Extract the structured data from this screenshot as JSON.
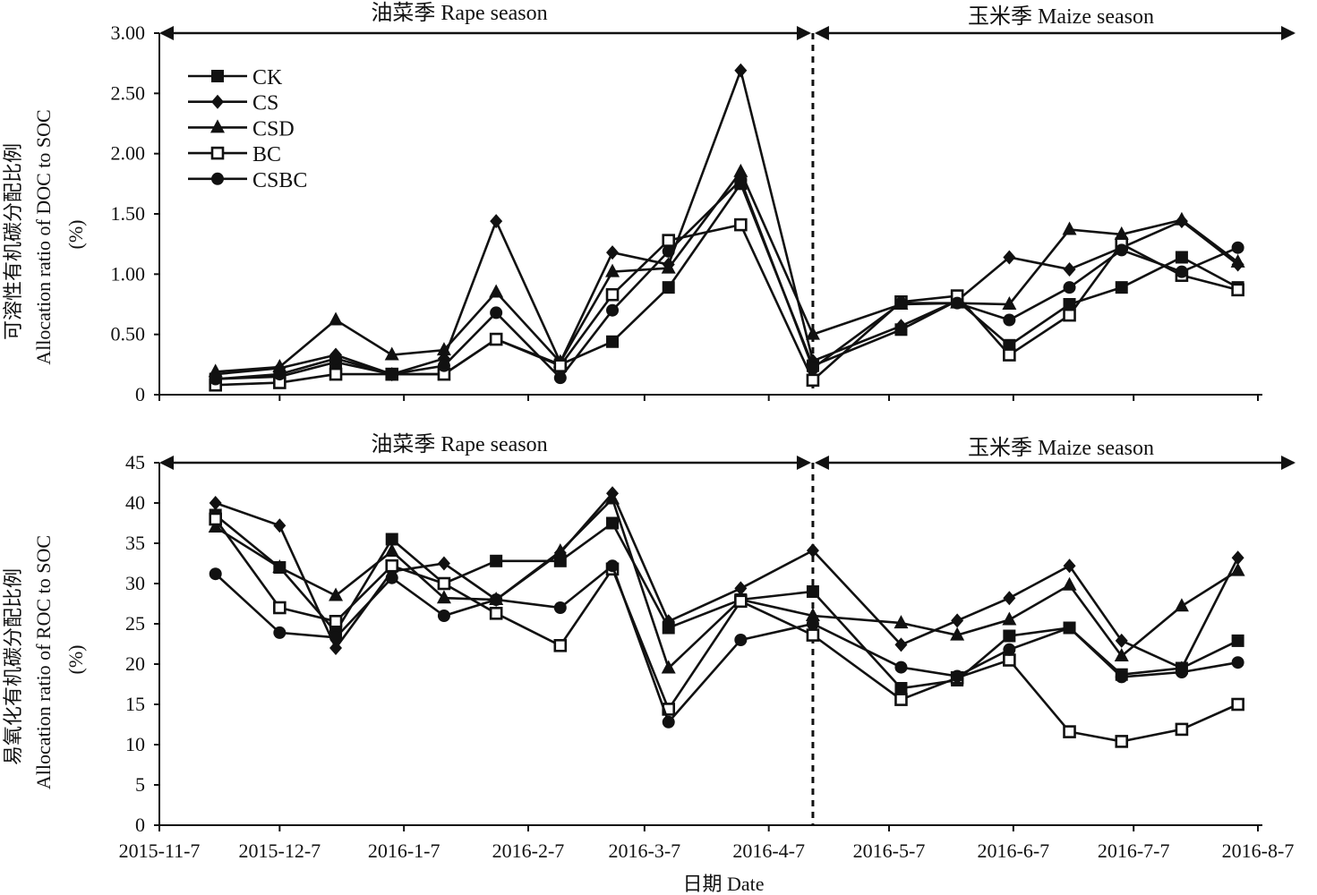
{
  "chart_data": [
    {
      "type": "line",
      "panel": "top",
      "ylabel_cn": "可溶性有机碳分配比例",
      "ylabel": "Allocation ratio of DOC to SOC",
      "yunit": "(%)",
      "ylim": [
        0,
        3.0
      ],
      "yticks": [
        "0",
        "0.50",
        "1.00",
        "1.50",
        "2.00",
        "2.50",
        "3.00"
      ],
      "ytick_values": [
        0,
        0.5,
        1.0,
        1.5,
        2.0,
        2.5,
        3.0
      ],
      "legend_position": "top-left",
      "series": [
        {
          "name": "CK",
          "marker": "square-filled",
          "values": [
            0.13,
            0.15,
            0.27,
            0.17,
            0.17,
            0.46,
            0.25,
            0.44,
            0.89,
            1.75,
            0.24,
            0.54,
            0.78,
            0.41,
            0.75,
            0.89,
            1.14,
            0.89
          ]
        },
        {
          "name": "CS",
          "marker": "diamond",
          "values": [
            0.17,
            0.22,
            0.33,
            0.17,
            0.3,
            1.44,
            0.27,
            1.18,
            1.08,
            2.69,
            0.28,
            0.57,
            0.78,
            1.14,
            1.04,
            1.22,
            1.44,
            1.08
          ]
        },
        {
          "name": "CSD",
          "marker": "triangle",
          "values": [
            0.19,
            0.23,
            0.62,
            0.33,
            0.37,
            0.85,
            0.27,
            1.02,
            1.05,
            1.85,
            0.5,
            0.75,
            0.76,
            0.75,
            1.37,
            1.33,
            1.45,
            1.1
          ]
        },
        {
          "name": "BC",
          "marker": "square-open",
          "values": [
            0.08,
            0.1,
            0.17,
            0.17,
            0.17,
            0.46,
            0.24,
            0.83,
            1.28,
            1.41,
            0.12,
            0.77,
            0.82,
            0.33,
            0.66,
            1.25,
            0.99,
            0.87
          ]
        },
        {
          "name": "CSBC",
          "marker": "circle",
          "values": [
            0.13,
            0.17,
            0.3,
            0.17,
            0.24,
            0.68,
            0.14,
            0.7,
            1.19,
            1.78,
            0.22,
            0.76,
            0.76,
            0.62,
            0.89,
            1.2,
            1.02,
            1.22
          ]
        }
      ]
    },
    {
      "type": "line",
      "panel": "bottom",
      "ylabel_cn": "易氧化有机碳分配比例",
      "ylabel": "Allocation ratio of ROC to SOC",
      "yunit": "(%)",
      "ylim": [
        0,
        45
      ],
      "yticks": [
        "0",
        "5",
        "10",
        "15",
        "20",
        "25",
        "30",
        "35",
        "40",
        "45"
      ],
      "ytick_values": [
        0,
        5,
        10,
        15,
        20,
        25,
        30,
        35,
        40,
        45
      ],
      "series": [
        {
          "name": "CK",
          "marker": "square-filled",
          "values": [
            38.5,
            32,
            24,
            35.5,
            30,
            32.8,
            32.8,
            37.5,
            24.5,
            28,
            29,
            17,
            18,
            23.5,
            24.5,
            18.7,
            19.5,
            22.9
          ]
        },
        {
          "name": "CS",
          "marker": "diamond",
          "values": [
            40,
            37.2,
            22,
            31.5,
            32.5,
            28,
            33.8,
            41.2,
            25.3,
            29.4,
            34.1,
            22.4,
            25.4,
            28.2,
            32.2,
            22.9,
            19.5,
            33.2
          ]
        },
        {
          "name": "CSD",
          "marker": "triangle",
          "values": [
            37,
            32,
            28.5,
            34,
            28.2,
            28,
            34,
            40.5,
            19.5,
            28,
            26,
            25.1,
            23.6,
            25.5,
            29.8,
            21,
            27.2,
            31.6
          ]
        },
        {
          "name": "BC",
          "marker": "square-open",
          "values": [
            38,
            27,
            25.3,
            32.2,
            30,
            26.3,
            22.3,
            31.8,
            14.4,
            27.8,
            23.6,
            15.6,
            18.3,
            20.5,
            11.6,
            10.4,
            11.9,
            15
          ]
        },
        {
          "name": "CSBC",
          "marker": "circle",
          "values": [
            31.2,
            23.9,
            23.3,
            30.7,
            26,
            28,
            27,
            32.2,
            12.8,
            23,
            25,
            19.6,
            18.5,
            21.8,
            24.5,
            18.4,
            19,
            20.2
          ]
        }
      ]
    }
  ],
  "x_days_since_2015_11_7": [
    14,
    30,
    44,
    58,
    71,
    84,
    100,
    113,
    127,
    145,
    163,
    185,
    199,
    212,
    227,
    240,
    255,
    269
  ],
  "xticks": [
    "2015-11-7",
    "2015-12-7",
    "2016-1-7",
    "2016-2-7",
    "2016-3-7",
    "2016-4-7",
    "2016-5-7",
    "2016-6-7",
    "2016-7-7",
    "2016-8-7"
  ],
  "xtick_days": [
    0,
    30,
    61,
    92,
    121,
    152,
    182,
    213,
    243,
    274
  ],
  "xlabel": "日期 Date",
  "season_divider_day": 163,
  "seasons": {
    "rape": "油菜季 Rape season",
    "maize": "玉米季 Maize season"
  }
}
